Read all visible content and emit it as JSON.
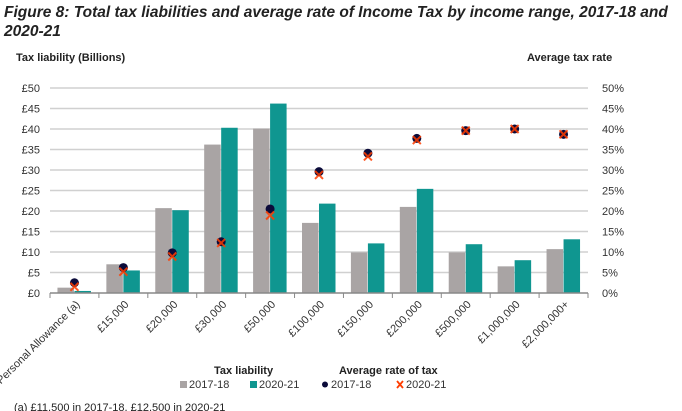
{
  "title": "Figure 8: Total tax liabilities and average rate of Income Tax by income range, 2017-18 and 2020-21",
  "note": "(a) £11,500 in 2017-18, £12,500 in 2020-21",
  "chart_data": {
    "type": "bar",
    "ylabel": "Tax liability (Billions)",
    "y2label": "Average tax rate",
    "ylim": [
      0,
      50
    ],
    "y2lim": [
      0,
      50
    ],
    "yticks": [
      "£0",
      "£5",
      "£10",
      "£15",
      "£20",
      "£25",
      "£30",
      "£35",
      "£40",
      "£45",
      "£50"
    ],
    "y2ticks": [
      "0%",
      "5%",
      "10%",
      "15%",
      "20%",
      "25%",
      "30%",
      "35%",
      "40%",
      "45%",
      "50%"
    ],
    "grid": true,
    "legend_placement": "bottom",
    "legend_groups": [
      "Tax liability",
      "Average rate of tax"
    ],
    "categories": [
      "Personal Allowance (a)",
      "£15,000",
      "£20,000",
      "£30,000",
      "£50,000",
      "£100,000",
      "£150,000",
      "£200,000",
      "£500,000",
      "£1,000,000",
      "£2,000,000+"
    ],
    "series": [
      {
        "name": "2017-18",
        "type": "bar",
        "axis": "left",
        "color": "#a9a4a4",
        "values": [
          1.3,
          7.0,
          20.7,
          36.2,
          40.1,
          17.1,
          9.9,
          21.0,
          9.9,
          6.5,
          10.7
        ]
      },
      {
        "name": "2020-21",
        "type": "bar",
        "axis": "left",
        "color": "#0f9690",
        "values": [
          0.5,
          5.5,
          20.2,
          40.3,
          46.2,
          21.8,
          12.1,
          25.4,
          11.9,
          8.0,
          13.1
        ]
      },
      {
        "name": "2017-18",
        "type": "scatter",
        "marker": "circle",
        "axis": "right",
        "color": "#0b0b3a",
        "values": [
          2.5,
          6.2,
          9.8,
          12.5,
          20.5,
          29.6,
          34.1,
          37.7,
          39.6,
          40.0,
          38.7
        ]
      },
      {
        "name": "2020-21",
        "type": "scatter",
        "marker": "x",
        "axis": "right",
        "color": "#ff3d00",
        "values": [
          1.5,
          5.2,
          8.9,
          12.2,
          18.9,
          28.8,
          33.3,
          37.3,
          39.6,
          40.0,
          38.7
        ]
      }
    ]
  }
}
